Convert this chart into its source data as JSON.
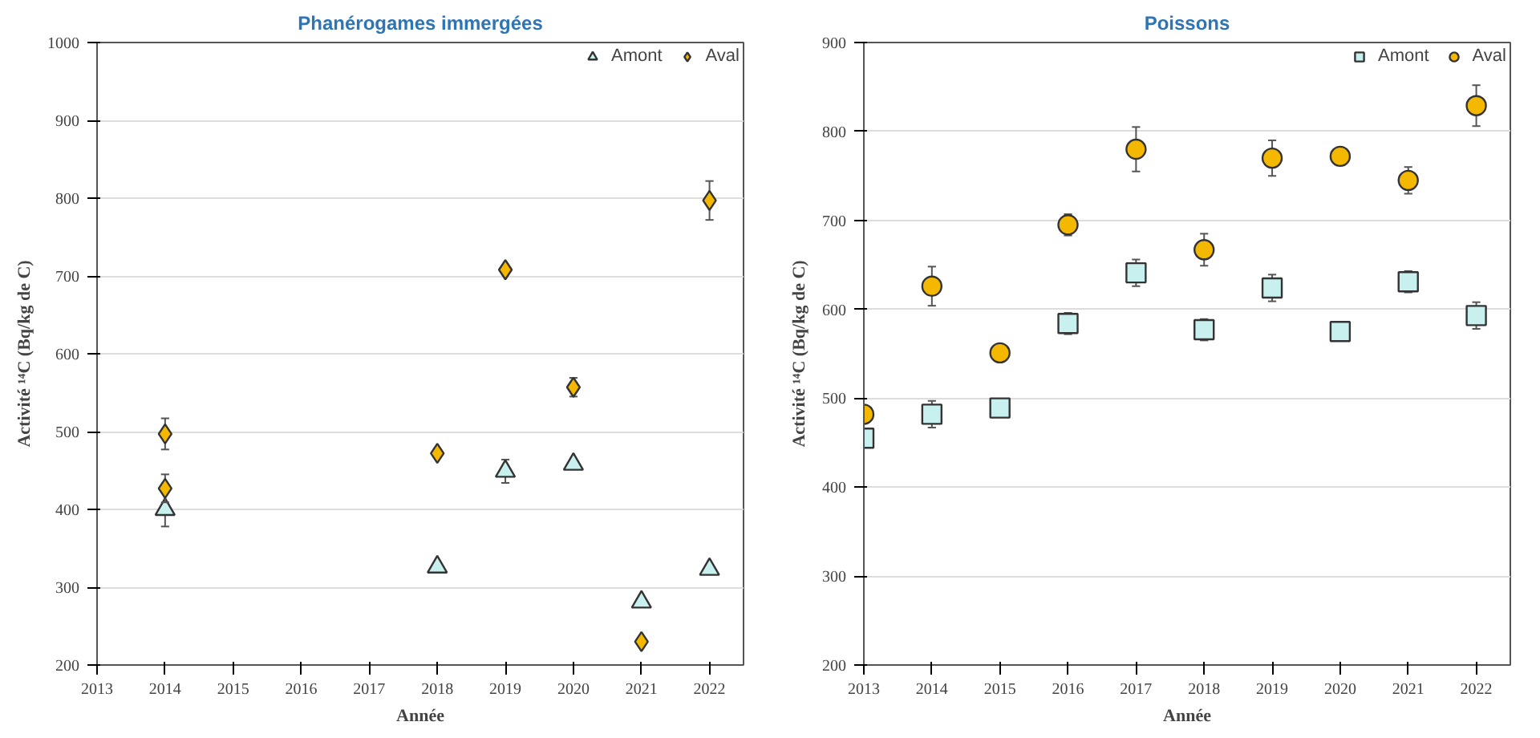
{
  "chart_data": [
    {
      "type": "scatter",
      "title": "Phanérogames immergées",
      "xlabel": "Année",
      "ylabel": "Activité ¹⁴C (Bq/kg de C)",
      "xlim": [
        2013,
        2022.5
      ],
      "xticks": [
        2013,
        2014,
        2015,
        2016,
        2017,
        2018,
        2019,
        2020,
        2021,
        2022
      ],
      "ylim": [
        200,
        1000
      ],
      "yticks": [
        200,
        300,
        400,
        500,
        600,
        700,
        800,
        900,
        1000
      ],
      "grid": "y",
      "legend": "top right",
      "series": [
        {
          "name": "Amont",
          "color": "#c8f0ee",
          "marker": "triangle",
          "x": [
            2014,
            2018,
            2019,
            2020,
            2021,
            2022
          ],
          "values": [
            400,
            326,
            449,
            458,
            281,
            323
          ],
          "errors": [
            22,
            null,
            15,
            null,
            null,
            null
          ]
        },
        {
          "name": "Aval",
          "color": "#f5b800",
          "marker": "diamond",
          "x": [
            2014,
            2014,
            2018,
            2019,
            2020,
            2021,
            2022
          ],
          "values": [
            497,
            427,
            472,
            708,
            557,
            230,
            797
          ],
          "errors": [
            20,
            18,
            null,
            null,
            12,
            null,
            25
          ]
        }
      ]
    },
    {
      "type": "scatter",
      "title": "Poissons",
      "xlabel": "Année",
      "ylabel": "Activité ¹⁴C (Bq/kg de C)",
      "xlim": [
        2013,
        2022.5
      ],
      "xticks": [
        2013,
        2014,
        2015,
        2016,
        2017,
        2018,
        2019,
        2020,
        2021,
        2022
      ],
      "ylim": [
        200,
        900
      ],
      "yticks": [
        200,
        300,
        400,
        500,
        600,
        700,
        800,
        900
      ],
      "grid": "y",
      "legend": "top right",
      "series": [
        {
          "name": "Amont",
          "color": "#c8f0ee",
          "marker": "square",
          "x": [
            2013,
            2014,
            2015,
            2016,
            2017,
            2018,
            2019,
            2020,
            2021,
            2022
          ],
          "values": [
            455,
            482,
            489,
            584,
            641,
            577,
            624,
            575,
            631,
            593
          ],
          "errors": [
            null,
            15,
            null,
            12,
            15,
            12,
            15,
            null,
            12,
            15
          ]
        },
        {
          "name": "Aval",
          "color": "#f5b800",
          "marker": "circle",
          "x": [
            2013,
            2014,
            2015,
            2016,
            2017,
            2018,
            2019,
            2020,
            2021,
            2022
          ],
          "values": [
            482,
            626,
            551,
            695,
            780,
            667,
            770,
            772,
            745,
            829
          ],
          "errors": [
            null,
            22,
            null,
            12,
            25,
            18,
            20,
            null,
            15,
            23
          ]
        }
      ]
    }
  ]
}
